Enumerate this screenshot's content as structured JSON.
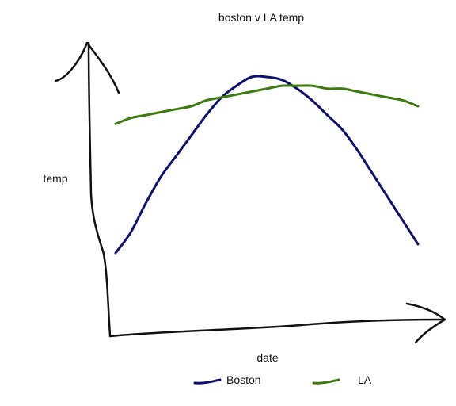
{
  "chart_data": {
    "type": "line",
    "title": "boston v LA temp",
    "xlabel": "date",
    "ylabel": "temp",
    "x": [
      0,
      0.05,
      0.1,
      0.15,
      0.2,
      0.25,
      0.3,
      0.35,
      0.4,
      0.45,
      0.5,
      0.55,
      0.6,
      0.65,
      0.7,
      0.75,
      0.8,
      0.85,
      0.9,
      0.95,
      1
    ],
    "xlim": [
      0,
      1
    ],
    "ylim": [
      0,
      1
    ],
    "grid": false,
    "legend_position": "bottom",
    "series": [
      {
        "name": "Boston",
        "color": "#0d1070",
        "values": [
          0.3,
          0.37,
          0.47,
          0.56,
          0.63,
          0.7,
          0.77,
          0.83,
          0.87,
          0.9,
          0.9,
          0.89,
          0.86,
          0.82,
          0.77,
          0.72,
          0.65,
          0.57,
          0.49,
          0.41,
          0.33
        ]
      },
      {
        "name": "LA",
        "color": "#3c7a0e",
        "values": [
          0.74,
          0.76,
          0.77,
          0.78,
          0.79,
          0.8,
          0.82,
          0.83,
          0.84,
          0.85,
          0.86,
          0.87,
          0.87,
          0.87,
          0.86,
          0.86,
          0.85,
          0.84,
          0.83,
          0.82,
          0.8
        ]
      }
    ],
    "axis_color": "#111111"
  }
}
